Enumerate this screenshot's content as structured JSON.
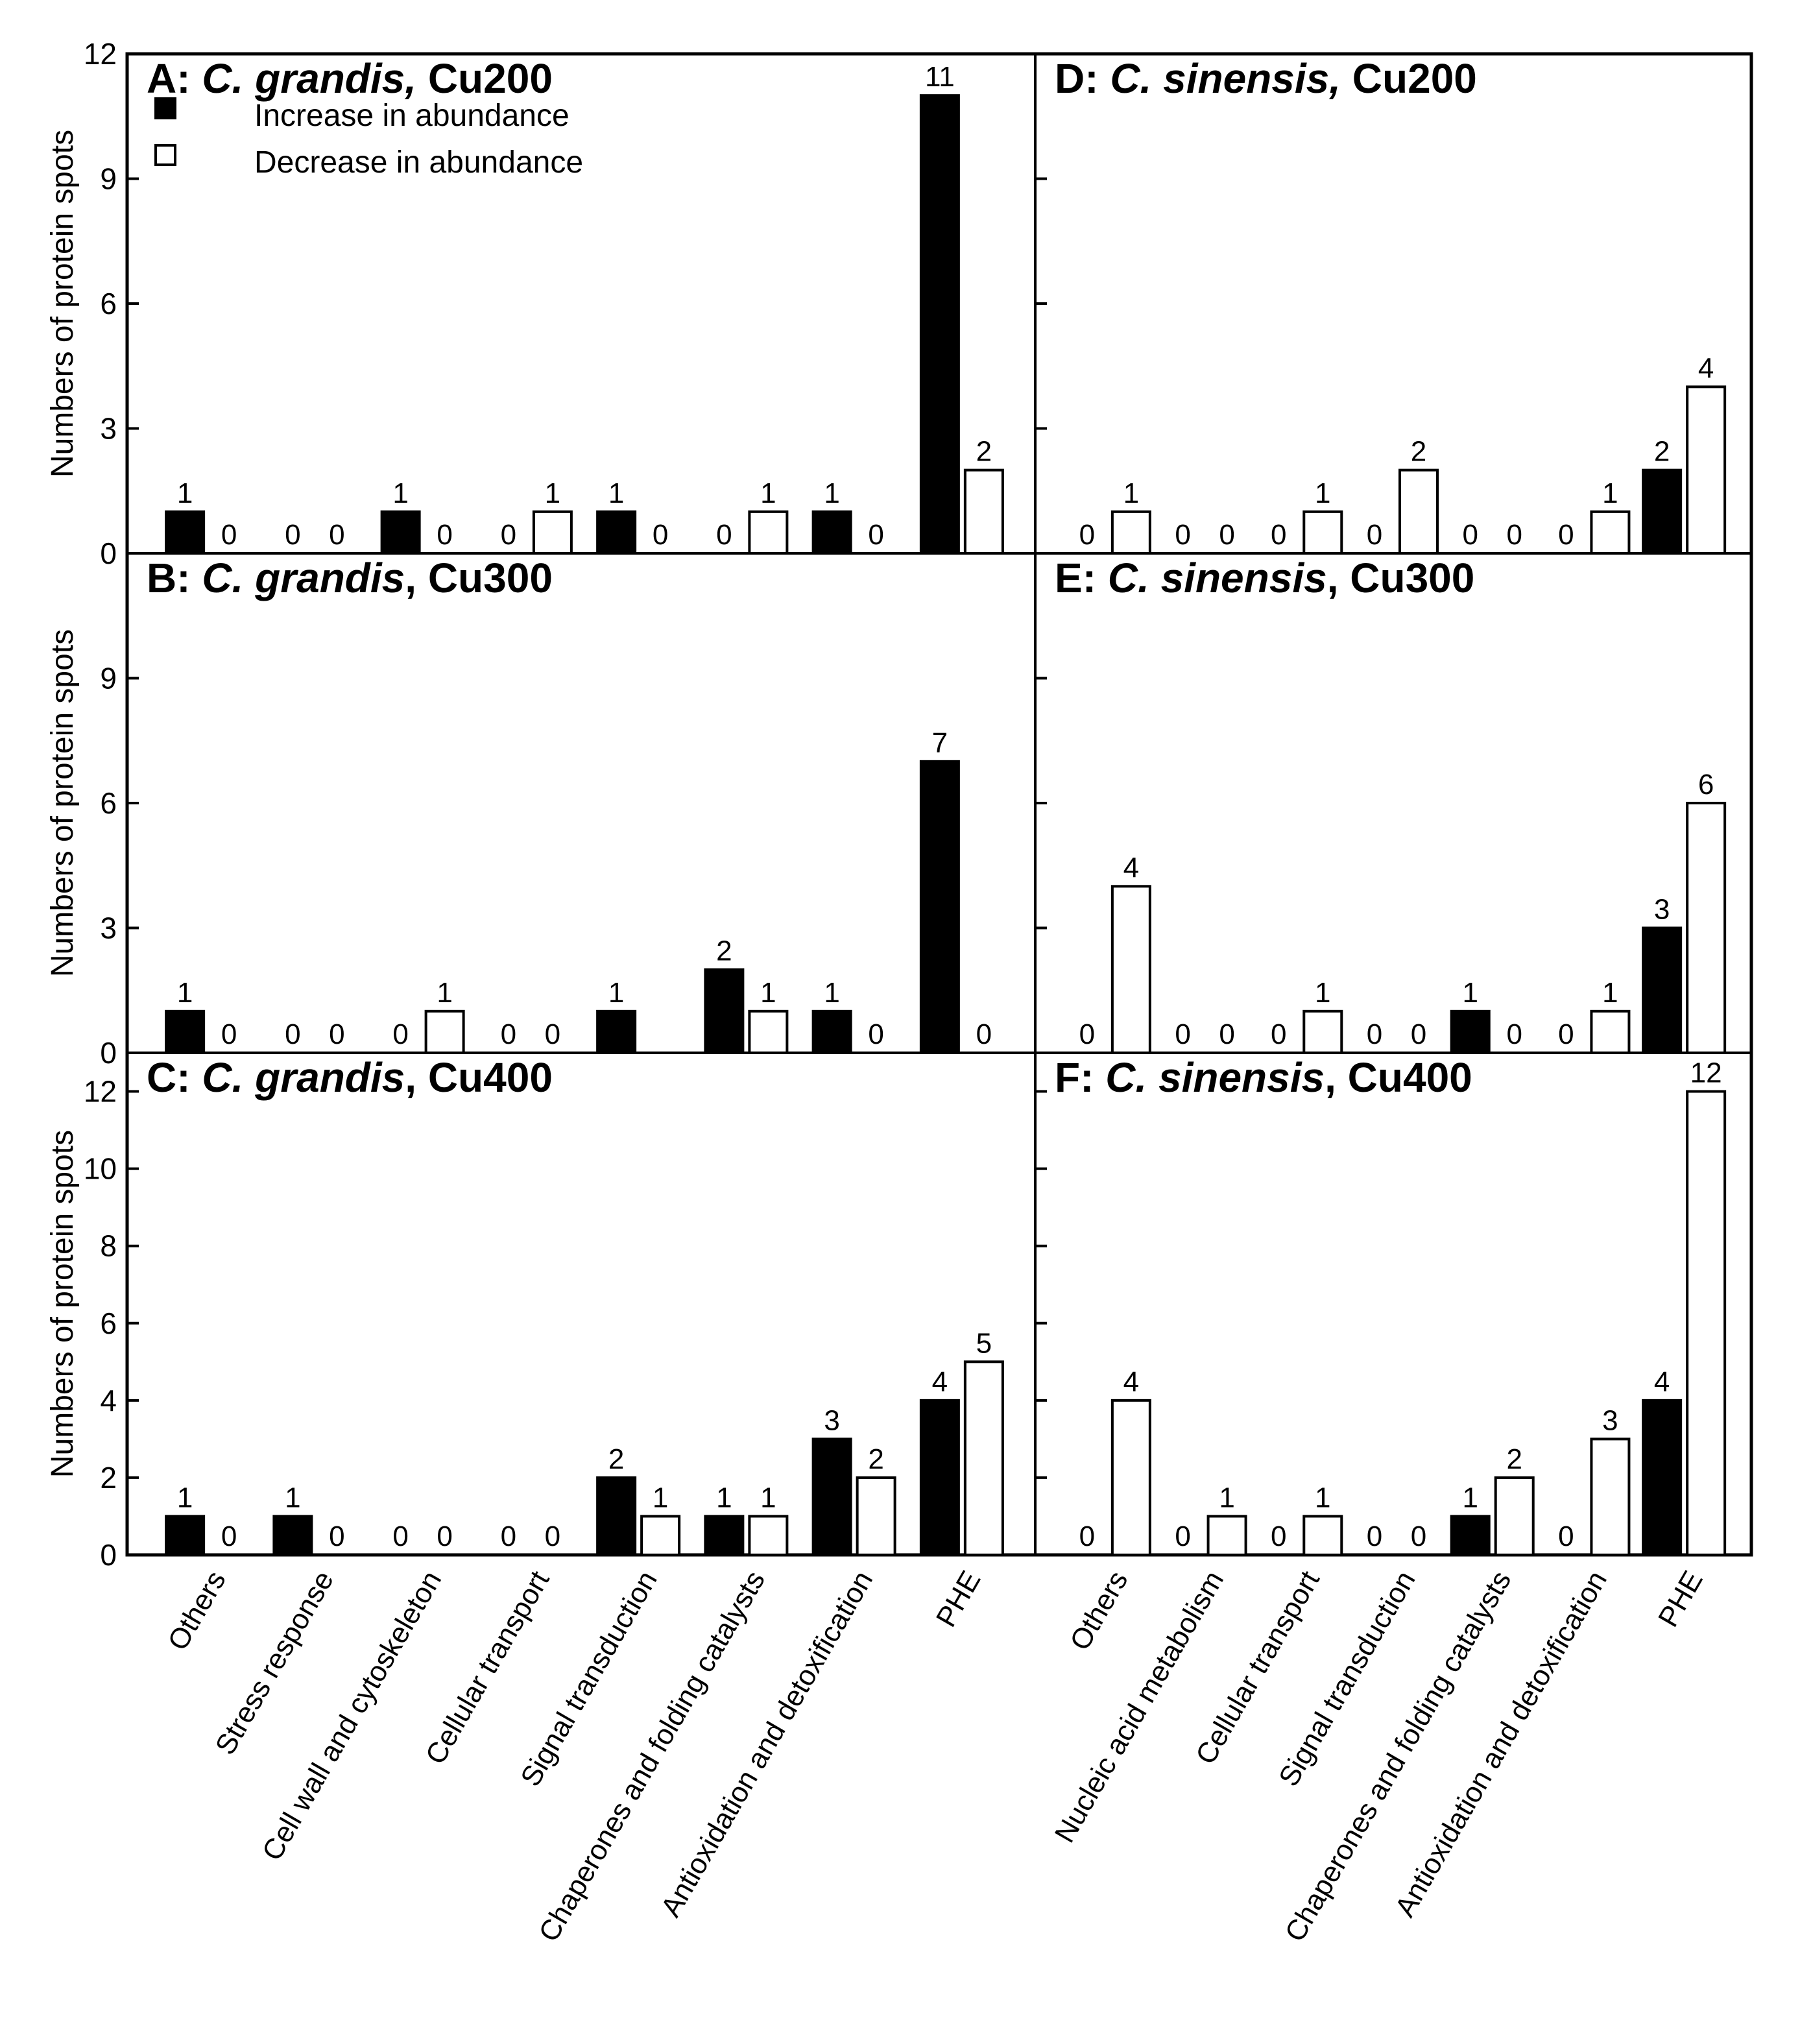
{
  "chart_data": {
    "type": "bar",
    "ylabel": "Numbers of protein spots",
    "legend": {
      "location": "top-left of panel A",
      "entries": [
        {
          "name": "Increase in abundance",
          "fill": "#000000"
        },
        {
          "name": "Decrease in abundance",
          "fill": "#ffffff"
        }
      ]
    },
    "categories_left": [
      "Others",
      "Stress response",
      "Cell wall and cytoskeleton",
      "Cellular transport",
      "Signal transduction",
      "Chaperones and folding catalysts",
      "Antioxidation and detoxification",
      "PHE"
    ],
    "categories_right": [
      "Others",
      "Nucleic acid metabolism",
      "Cellular transport",
      "Signal transduction",
      "Chaperones and folding catalysts",
      "Antioxidation and detoxification",
      "PHE"
    ],
    "panels": [
      {
        "id": "A",
        "title": {
          "prefix": "A: ",
          "species": "C. grandis,",
          "treatment": " Cu200"
        },
        "ylim": [
          0,
          12
        ],
        "yticks": [
          0,
          3,
          6,
          9,
          12
        ],
        "series": [
          {
            "name": "Increase in abundance",
            "values": [
              1,
              0,
              1,
              0,
              1,
              0,
              1,
              11
            ]
          },
          {
            "name": "Decrease in abundance",
            "values": [
              0,
              0,
              0,
              1,
              0,
              1,
              0,
              2
            ]
          }
        ]
      },
      {
        "id": "B",
        "title": {
          "prefix": "B: ",
          "species": "C. grandis",
          "treatment": ", Cu300"
        },
        "ylim": [
          0,
          12
        ],
        "yticks": [
          0,
          3,
          6,
          9
        ],
        "series": [
          {
            "name": "Increase in abundance",
            "values": [
              1,
              0,
              0,
              0,
              1,
              2,
              1,
              7
            ]
          },
          {
            "name": "Decrease in abundance",
            "values": [
              0,
              0,
              1,
              0,
              null,
              1,
              0,
              0
            ]
          }
        ]
      },
      {
        "id": "C",
        "title": {
          "prefix": "C: ",
          "species": "C. grandis",
          "treatment": ", Cu400"
        },
        "ylim": [
          0,
          13
        ],
        "yticks": [
          0,
          2,
          4,
          6,
          8,
          10,
          12
        ],
        "series": [
          {
            "name": "Increase in abundance",
            "values": [
              1,
              1,
              0,
              0,
              2,
              1,
              3,
              4
            ]
          },
          {
            "name": "Decrease in abundance",
            "values": [
              0,
              0,
              0,
              0,
              1,
              1,
              2,
              5
            ]
          }
        ]
      },
      {
        "id": "D",
        "title": {
          "prefix": "D: ",
          "species": "C. sinensis,",
          "treatment": " Cu200"
        },
        "ylim": [
          0,
          12
        ],
        "yticks": [
          0,
          3,
          6,
          9,
          12
        ],
        "series": [
          {
            "name": "Increase in abundance",
            "values": [
              0,
              0,
              0,
              0,
              0,
              0,
              2
            ]
          },
          {
            "name": "Decrease in abundance",
            "values": [
              1,
              0,
              1,
              2,
              0,
              1,
              4
            ]
          }
        ]
      },
      {
        "id": "E",
        "title": {
          "prefix": "E: ",
          "species": "C. sinensis",
          "treatment": ", Cu300"
        },
        "ylim": [
          0,
          12
        ],
        "yticks": [
          0,
          3,
          6,
          9
        ],
        "series": [
          {
            "name": "Increase in abundance",
            "values": [
              0,
              0,
              0,
              0,
              1,
              0,
              3
            ]
          },
          {
            "name": "Decrease in abundance",
            "values": [
              4,
              0,
              1,
              0,
              0,
              1,
              6
            ]
          }
        ]
      },
      {
        "id": "F",
        "title": {
          "prefix": "F: ",
          "species": "C. sinensis",
          "treatment": ", Cu400"
        },
        "ylim": [
          0,
          13
        ],
        "yticks": [
          0,
          2,
          4,
          6,
          8,
          10,
          12
        ],
        "series": [
          {
            "name": "Increase in abundance",
            "values": [
              0,
              0,
              0,
              0,
              1,
              0,
              4
            ]
          },
          {
            "name": "Decrease in abundance",
            "values": [
              4,
              1,
              1,
              0,
              2,
              3,
              12
            ]
          }
        ]
      }
    ]
  }
}
